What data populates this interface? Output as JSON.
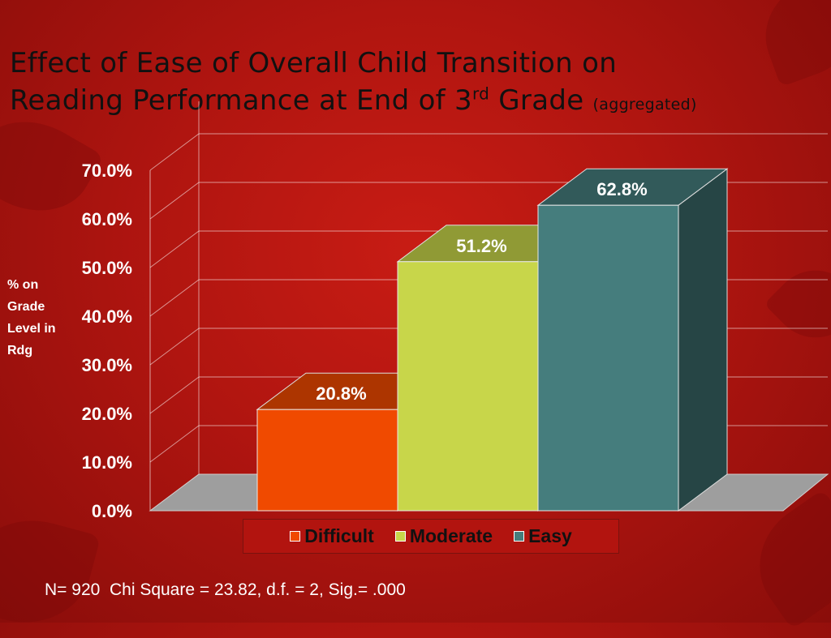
{
  "title": {
    "line1": "Effect of Ease of Overall Child Transition on",
    "line2_main": "Reading Performance  at End of 3",
    "line2_sup": "rd",
    "line2_end": " Grade",
    "line2_small": "(aggregated)"
  },
  "ylabel": {
    "lines": [
      "% on",
      "Grade",
      "Level in",
      "Rdg"
    ]
  },
  "footnote": "N= 920  Chi Square = 23.82, d.f. = 2, Sig.= .000",
  "colors": {
    "difficult": "#f04a00",
    "moderate": "#c8d64a",
    "easy": "#457d7d"
  },
  "chart_data": {
    "type": "bar",
    "categories": [
      "Difficult",
      "Moderate",
      "Easy"
    ],
    "values": [
      20.8,
      51.2,
      62.8
    ],
    "data_labels": [
      "20.8%",
      "51.2%",
      "62.8%"
    ],
    "y_ticks": [
      "0.0%",
      "10.0%",
      "20.0%",
      "30.0%",
      "40.0%",
      "50.0%",
      "60.0%",
      "70.0%"
    ],
    "ylim": [
      0,
      70
    ],
    "ylabel": "% on Grade Level in Rdg",
    "legend": [
      "Difficult",
      "Moderate",
      "Easy"
    ],
    "legend_position": "bottom",
    "grid": true,
    "style": "3d"
  }
}
